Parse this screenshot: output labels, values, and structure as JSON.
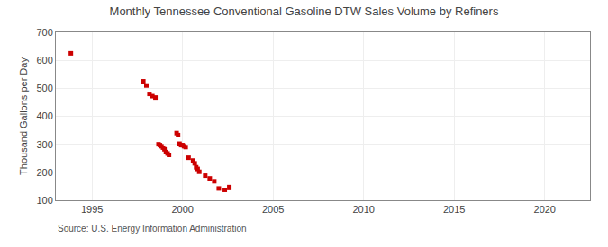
{
  "chart_data": {
    "type": "scatter",
    "title": "Monthly Tennessee Conventional Gasoline DTW Sales Volume by Refiners",
    "ylabel": "Thousand Gallons per Day",
    "annotations": [
      "Source: U.S. Energy Information Administration"
    ],
    "color": "#cc0000",
    "marker": "square",
    "grid": true,
    "xlim": [
      1993.0,
      2022.5
    ],
    "ylim": [
      100,
      700
    ],
    "xticks": [
      1995,
      2000,
      2005,
      2010,
      2015,
      2020
    ],
    "yticks": [
      100,
      200,
      300,
      400,
      500,
      600,
      700
    ],
    "x": [
      1993.83,
      1997.83,
      1998.0,
      1998.17,
      1998.33,
      1998.5,
      1998.67,
      1998.75,
      1998.83,
      1998.92,
      1999.0,
      1999.08,
      1999.17,
      1999.25,
      1999.67,
      1999.75,
      1999.83,
      1999.92,
      2000.0,
      2000.08,
      2000.17,
      2000.33,
      2000.58,
      2000.67,
      2000.75,
      2000.83,
      2000.92,
      2001.25,
      2001.5,
      2001.75,
      2002.0,
      2002.33,
      2002.58
    ],
    "values": [
      625,
      525,
      510,
      480,
      472,
      467,
      300,
      297,
      293,
      288,
      282,
      272,
      267,
      262,
      340,
      333,
      302,
      297,
      297,
      293,
      290,
      252,
      242,
      232,
      218,
      212,
      202,
      188,
      178,
      168,
      142,
      137,
      147
    ]
  }
}
